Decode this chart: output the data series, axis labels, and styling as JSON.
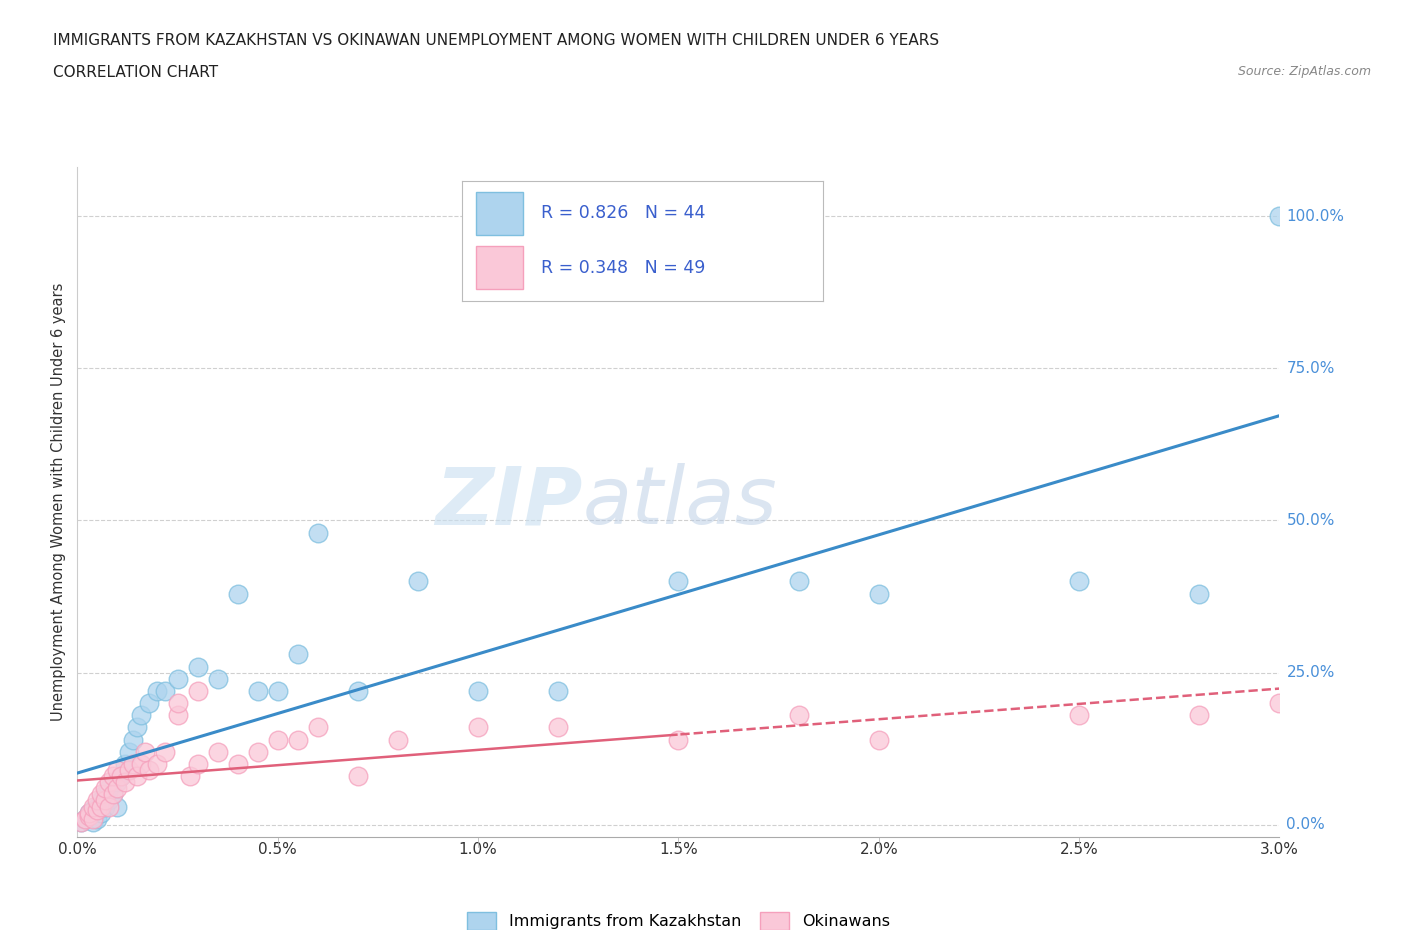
{
  "title_line1": "IMMIGRANTS FROM KAZAKHSTAN VS OKINAWAN UNEMPLOYMENT AMONG WOMEN WITH CHILDREN UNDER 6 YEARS",
  "title_line2": "CORRELATION CHART",
  "source": "Source: ZipAtlas.com",
  "xlim": [
    0.0,
    3.0
  ],
  "ylim": [
    -2.0,
    108.0
  ],
  "blue_color": "#7fbfdf",
  "blue_fill": "#aed4ee",
  "pink_color": "#f5a0bc",
  "pink_fill": "#fac8d8",
  "trend_blue": "#3a8bc8",
  "trend_pink": "#e0607a",
  "legend_text_color": "#3a5fcd",
  "R_blue": 0.826,
  "N_blue": 44,
  "R_pink": 0.348,
  "N_pink": 49,
  "blue_scatter_x": [
    0.01,
    0.02,
    0.03,
    0.03,
    0.04,
    0.04,
    0.05,
    0.05,
    0.06,
    0.06,
    0.07,
    0.07,
    0.08,
    0.08,
    0.09,
    0.1,
    0.1,
    0.11,
    0.12,
    0.13,
    0.14,
    0.15,
    0.16,
    0.18,
    0.2,
    0.22,
    0.25,
    0.3,
    0.35,
    0.4,
    0.45,
    0.5,
    0.55,
    0.6,
    0.7,
    0.85,
    1.0,
    1.2,
    1.5,
    1.8,
    2.0,
    2.5,
    2.8,
    3.0
  ],
  "blue_scatter_y": [
    0.5,
    1.0,
    1.5,
    2.0,
    2.5,
    0.5,
    1.0,
    3.0,
    2.0,
    4.0,
    3.0,
    5.0,
    4.0,
    6.0,
    5.0,
    7.0,
    3.0,
    8.0,
    10.0,
    12.0,
    14.0,
    16.0,
    18.0,
    20.0,
    22.0,
    22.0,
    24.0,
    26.0,
    24.0,
    38.0,
    22.0,
    22.0,
    28.0,
    48.0,
    22.0,
    40.0,
    22.0,
    22.0,
    40.0,
    40.0,
    38.0,
    40.0,
    38.0,
    100.0
  ],
  "pink_scatter_x": [
    0.01,
    0.02,
    0.03,
    0.03,
    0.04,
    0.04,
    0.05,
    0.05,
    0.06,
    0.06,
    0.07,
    0.07,
    0.08,
    0.08,
    0.09,
    0.09,
    0.1,
    0.1,
    0.11,
    0.12,
    0.13,
    0.14,
    0.15,
    0.16,
    0.17,
    0.18,
    0.2,
    0.22,
    0.25,
    0.28,
    0.3,
    0.35,
    0.4,
    0.5,
    0.6,
    0.7,
    0.8,
    1.0,
    1.2,
    1.5,
    1.8,
    2.0,
    2.5,
    2.8,
    3.0,
    0.25,
    0.3,
    0.45,
    0.55
  ],
  "pink_scatter_y": [
    0.5,
    1.0,
    1.5,
    2.0,
    1.0,
    3.0,
    2.5,
    4.0,
    3.0,
    5.0,
    4.0,
    6.0,
    3.0,
    7.0,
    5.0,
    8.0,
    6.0,
    9.0,
    8.0,
    7.0,
    9.0,
    10.0,
    8.0,
    10.0,
    12.0,
    9.0,
    10.0,
    12.0,
    18.0,
    8.0,
    10.0,
    12.0,
    10.0,
    14.0,
    16.0,
    8.0,
    14.0,
    16.0,
    16.0,
    14.0,
    18.0,
    14.0,
    18.0,
    18.0,
    20.0,
    20.0,
    22.0,
    12.0,
    14.0
  ],
  "watermark_zip": "ZIP",
  "watermark_atlas": "atlas",
  "background_color": "#ffffff",
  "grid_color": "#d0d0d0"
}
